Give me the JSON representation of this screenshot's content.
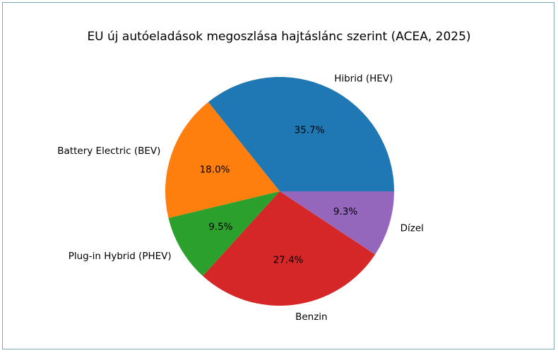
{
  "chart_data": {
    "type": "pie",
    "title": "EU új autóeladások megoszlása hajtáslánc szerint (ACEA, 2025)",
    "start_angle_deg": 0,
    "direction": "counterclockwise",
    "slices": [
      {
        "label": "Hibrid (HEV)",
        "value": 35.7,
        "pct_label": "35.7%",
        "color": "#1f77b4"
      },
      {
        "label": "Battery Electric (BEV)",
        "value": 18.0,
        "pct_label": "18.0%",
        "color": "#ff7f0e"
      },
      {
        "label": "Plug-in Hybrid (PHEV)",
        "value": 9.5,
        "pct_label": "9.5%",
        "color": "#2ca02c"
      },
      {
        "label": "Benzin",
        "value": 27.4,
        "pct_label": "27.4%",
        "color": "#d62728"
      },
      {
        "label": "Dízel",
        "value": 9.3,
        "pct_label": "9.3%",
        "color": "#9467bd"
      }
    ]
  }
}
